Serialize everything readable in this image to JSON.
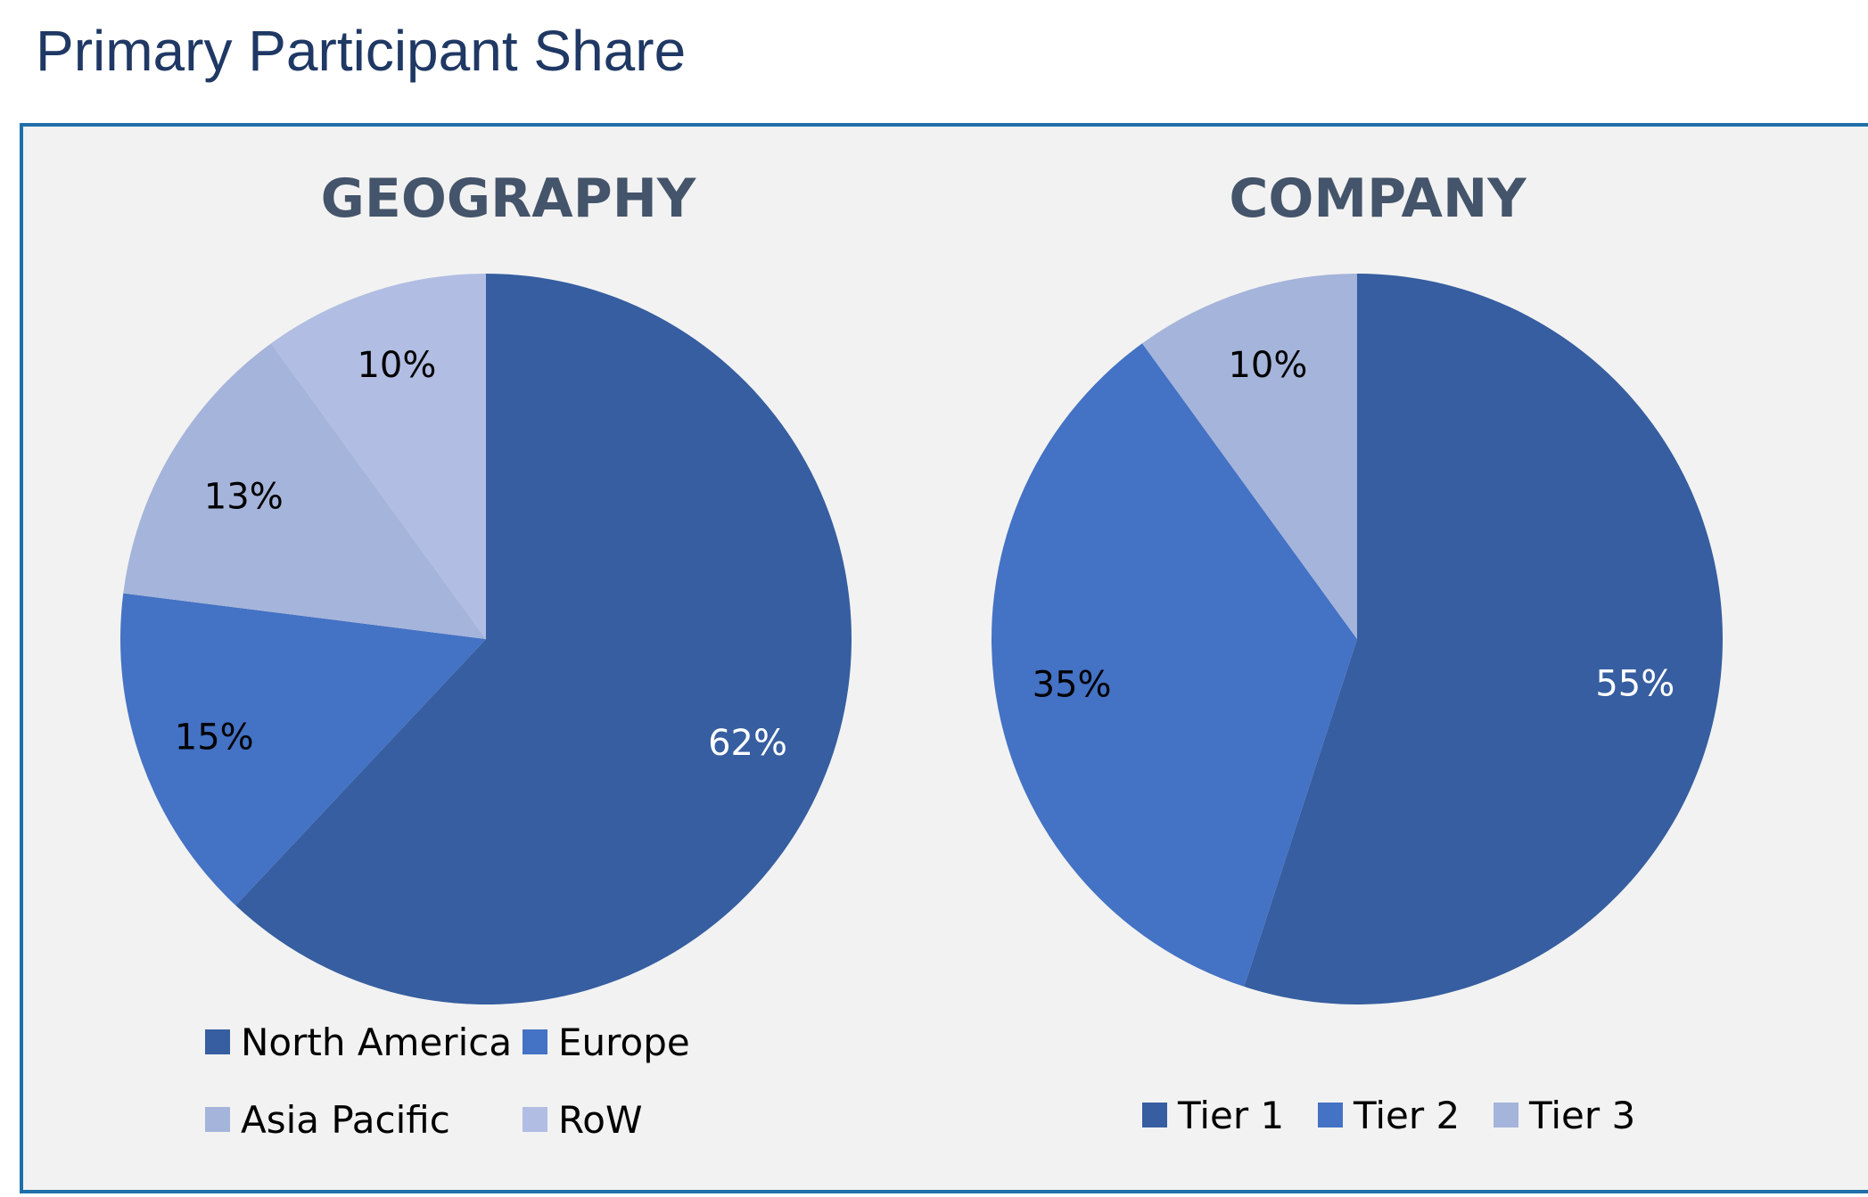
{
  "page": {
    "title": "Primary Participant Share"
  },
  "colors": {
    "dark_blue": "#365ea0",
    "mid_blue": "#4472c4",
    "light_blue": "#a5b4da",
    "lighter_blue": "#b1bde2",
    "panel_border": "#1f6fa8",
    "title_text": "#1f3864",
    "chart_title_text": "#44546a"
  },
  "chart_data": [
    {
      "type": "pie",
      "title": "GEOGRAPHY",
      "categories": [
        "North America",
        "Europe",
        "Asia Pacific",
        "RoW"
      ],
      "values": [
        62,
        15,
        13,
        10
      ],
      "labels": [
        "62%",
        "15%",
        "13%",
        "10%"
      ],
      "colors": [
        "#365ea0",
        "#4472c4",
        "#a5b4da",
        "#b1bde2"
      ],
      "label_colors": [
        "#ffffff",
        "#000000",
        "#000000",
        "#000000"
      ],
      "legend_position": "bottom"
    },
    {
      "type": "pie",
      "title": "COMPANY",
      "categories": [
        "Tier 1",
        "Tier 2",
        "Tier 3"
      ],
      "values": [
        55,
        35,
        10
      ],
      "labels": [
        "55%",
        "35%",
        "10%"
      ],
      "colors": [
        "#365ea0",
        "#4472c4",
        "#a5b4da"
      ],
      "label_colors": [
        "#ffffff",
        "#000000",
        "#000000"
      ],
      "legend_position": "bottom"
    }
  ]
}
